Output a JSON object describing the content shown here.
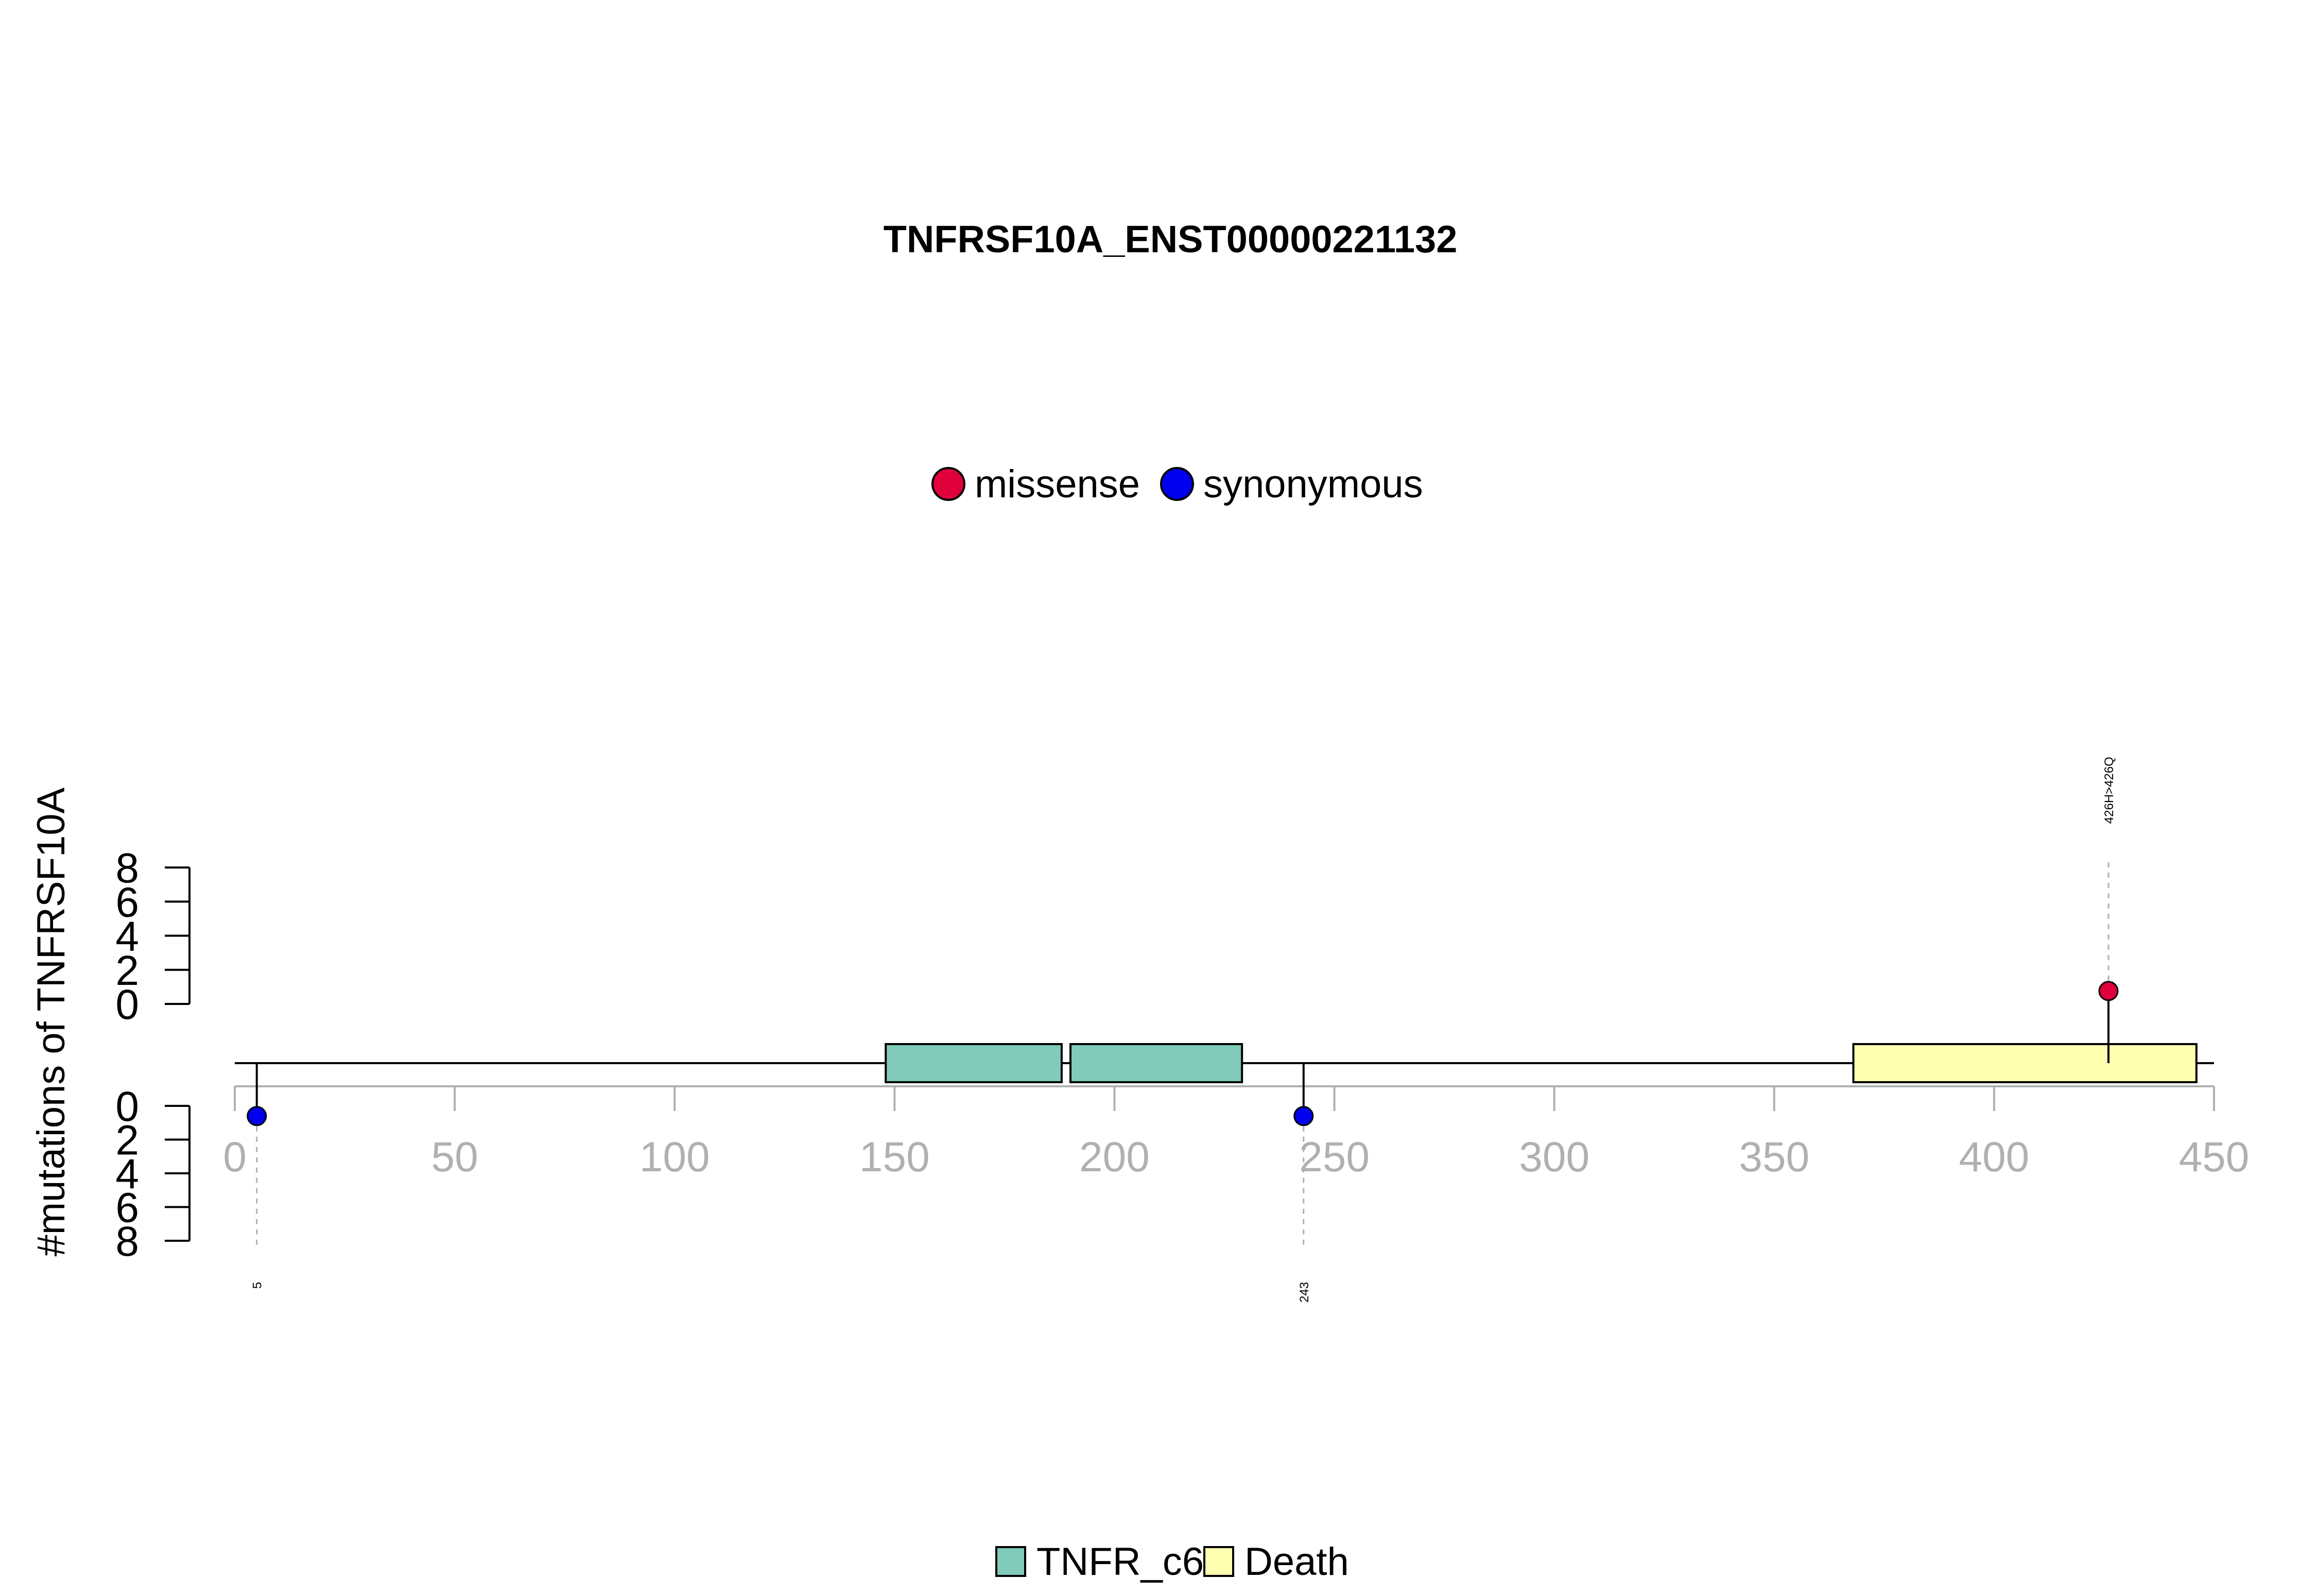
{
  "chart_data": {
    "type": "lollipop",
    "title": "TNFRSF10A_ENST00000221132",
    "ylabel": "#mutations of TNFRSF10A",
    "protein_length": 450,
    "xlim": [
      0,
      450
    ],
    "x_ticks": [
      0,
      50,
      100,
      150,
      200,
      250,
      300,
      350,
      400,
      450
    ],
    "y_ticks_top": [
      0,
      2,
      4,
      6,
      8
    ],
    "y_ticks_bottom": [
      0,
      2,
      4,
      6,
      8
    ],
    "mutation_legend": [
      {
        "name": "missense",
        "color": "#e0003c"
      },
      {
        "name": "synonymous",
        "color": "#0000ee"
      }
    ],
    "domain_legend": [
      {
        "name": "TNFR_c6",
        "color": "#80cbb9"
      },
      {
        "name": "Death",
        "color": "#ffffb0"
      }
    ],
    "domains": [
      {
        "name": "TNFR_c6",
        "start": 148,
        "end": 188
      },
      {
        "name": "TNFR_c6",
        "start": 190,
        "end": 229
      },
      {
        "name": "Death",
        "start": 368,
        "end": 446
      }
    ],
    "mutations": [
      {
        "position": 5,
        "label": "5",
        "type": "synonymous",
        "count": 1,
        "side": "bottom"
      },
      {
        "position": 243,
        "label": "243",
        "type": "synonymous",
        "count": 1,
        "side": "bottom"
      },
      {
        "position": 426,
        "label": "426H>426Q",
        "type": "missense",
        "count": 1,
        "side": "top"
      }
    ]
  }
}
